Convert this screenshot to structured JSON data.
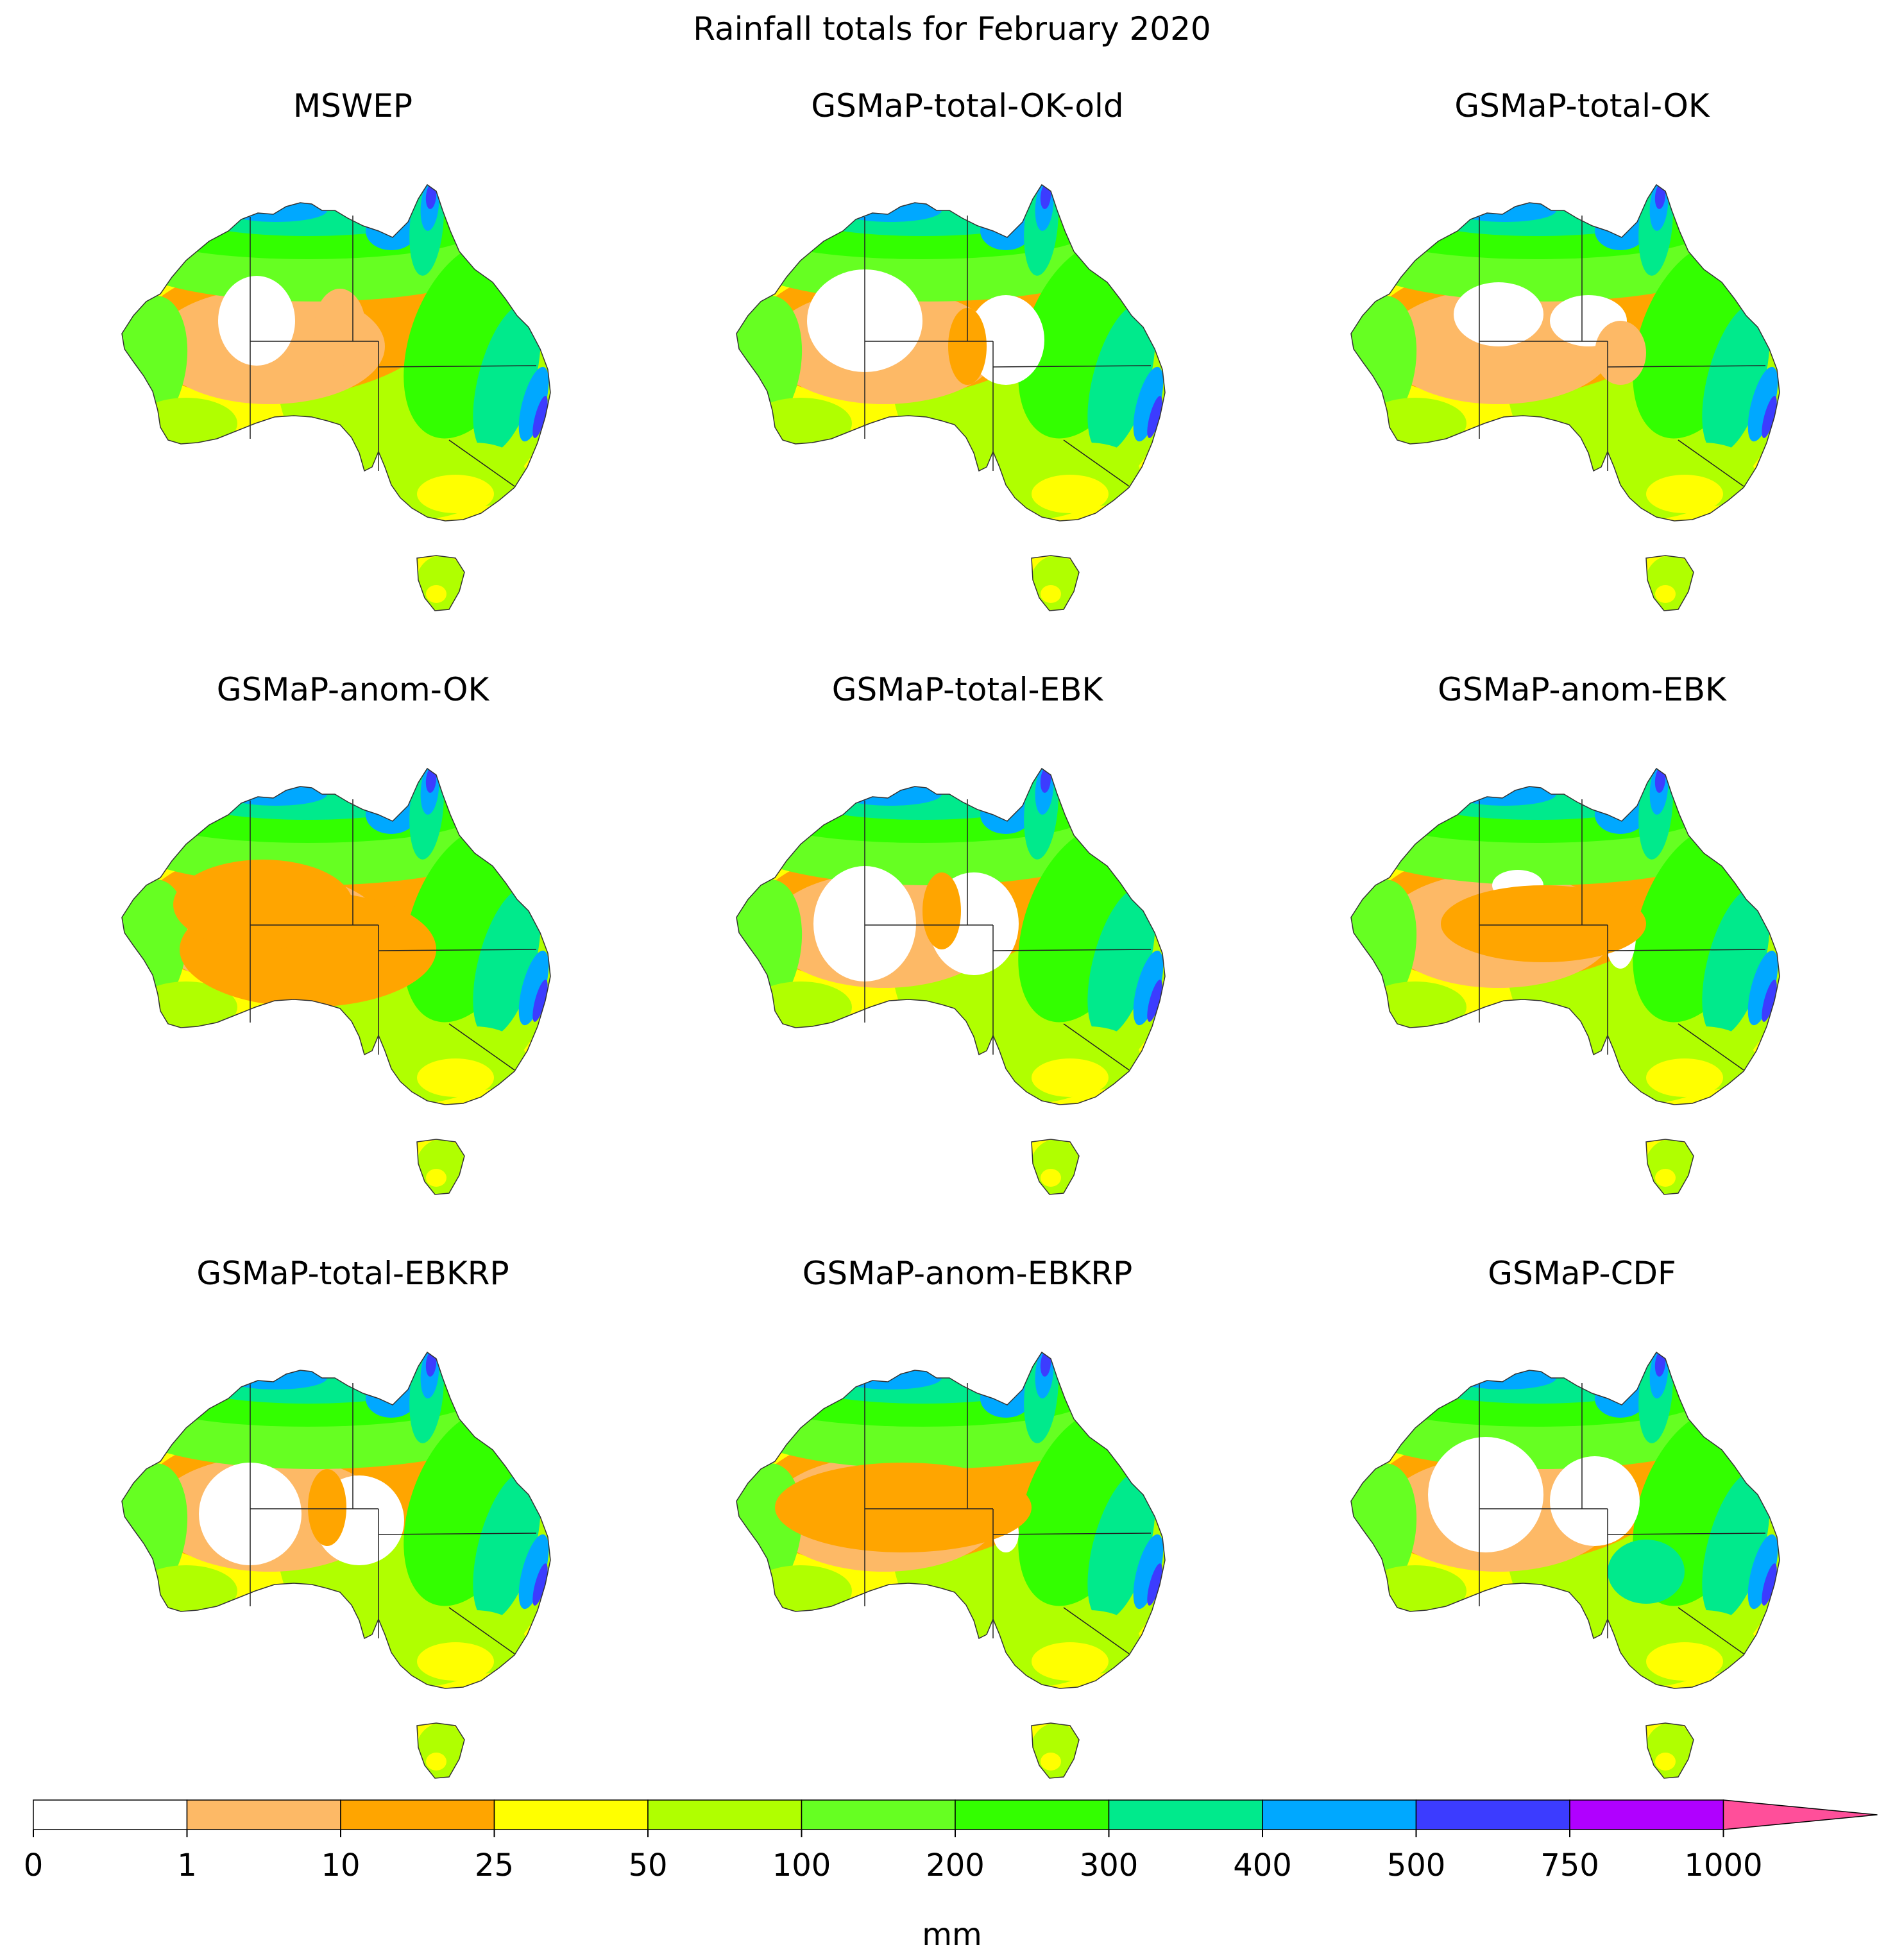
{
  "title": "Rainfall totals for February 2020",
  "panels": [
    {
      "title": "MSWEP"
    },
    {
      "title": "GSMaP-total-OK-old"
    },
    {
      "title": "GSMaP-total-OK"
    },
    {
      "title": "GSMaP-anom-OK"
    },
    {
      "title": "GSMaP-total-EBK"
    },
    {
      "title": "GSMaP-anom-EBK"
    },
    {
      "title": "GSMaP-total-EBKRP"
    },
    {
      "title": "GSMaP-anom-EBKRP"
    },
    {
      "title": "GSMaP-CDF"
    }
  ],
  "colorbar": {
    "label": "mm",
    "ticks": [
      "0",
      "1",
      "10",
      "25",
      "50",
      "100",
      "200",
      "300",
      "400",
      "500",
      "750",
      "1000"
    ],
    "colors": [
      "#ffffff",
      "#fdb966",
      "#ffa500",
      "#ffff00",
      "#b0ff00",
      "#66ff22",
      "#33ff00",
      "#00ea8c",
      "#00a8ff",
      "#3c3cff",
      "#b000ff",
      "#ff00ff",
      "#ff4f9a"
    ],
    "extend": "max"
  }
}
